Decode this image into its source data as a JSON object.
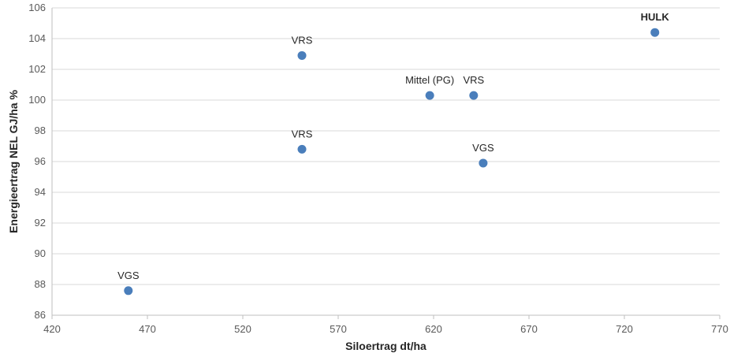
{
  "chart_data": {
    "type": "scatter",
    "title": "",
    "xlabel": "Siloertrag dt/ha",
    "ylabel": "Energieertrag NEL GJ/ha %",
    "xlim": [
      420,
      770
    ],
    "ylim": [
      86,
      106
    ],
    "x_ticks": [
      420,
      470,
      520,
      570,
      620,
      670,
      720,
      770
    ],
    "y_ticks": [
      86,
      88,
      90,
      92,
      94,
      96,
      98,
      100,
      102,
      104,
      106
    ],
    "grid": "horizontal",
    "legend": "none",
    "marker_color": "#4a7ebb",
    "points": [
      {
        "x": 460,
        "y": 87.6,
        "label": "VGS",
        "bold": false
      },
      {
        "x": 551,
        "y": 102.9,
        "label": "VRS",
        "bold": false
      },
      {
        "x": 551,
        "y": 96.8,
        "label": "VRS",
        "bold": false
      },
      {
        "x": 618,
        "y": 100.3,
        "label": "Mittel (PG)",
        "bold": false
      },
      {
        "x": 641,
        "y": 100.3,
        "label": "VRS",
        "bold": false
      },
      {
        "x": 646,
        "y": 95.9,
        "label": "VGS",
        "bold": false
      },
      {
        "x": 736,
        "y": 104.4,
        "label": "HULK",
        "bold": true
      }
    ]
  }
}
